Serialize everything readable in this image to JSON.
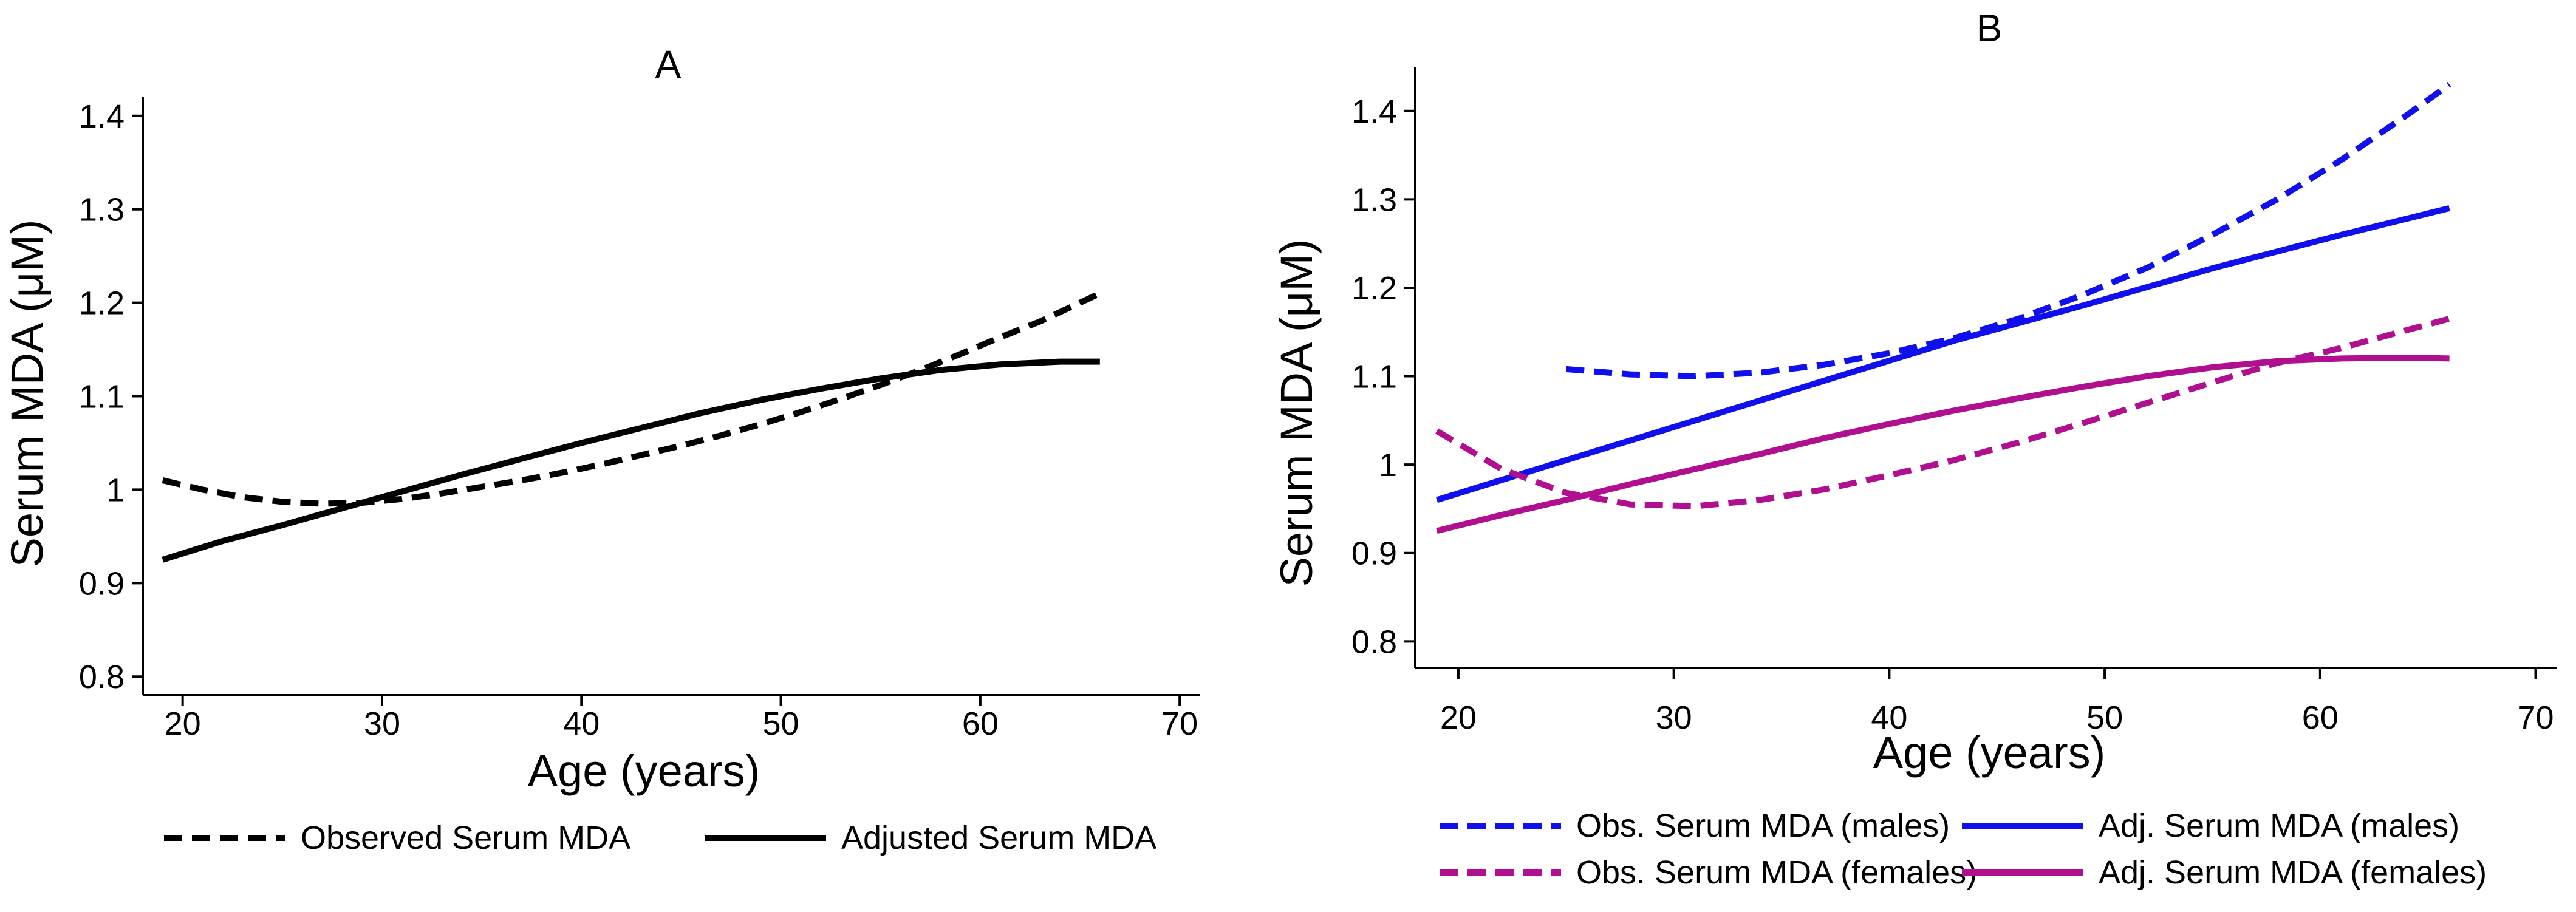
{
  "chart_data": [
    {
      "type": "line",
      "title": "A",
      "xlabel": "Age (years)",
      "ylabel": "Serum MDA (μM)",
      "xlim": [
        18,
        71
      ],
      "ylim": [
        0.78,
        1.42
      ],
      "x_ticks": [
        "20",
        "30",
        "40",
        "50",
        "60",
        "70"
      ],
      "y_ticks": [
        "0.8",
        "0.9",
        "1",
        "1.1",
        "1.2",
        "1.3",
        "1.4"
      ],
      "grid": false,
      "legend_position": "bottom",
      "series": [
        {
          "name": "Observed Serum MDA",
          "color": "#000000",
          "dash": "dashed",
          "x": [
            19,
            21,
            23,
            25,
            27,
            29,
            31,
            33,
            35,
            37,
            39,
            41,
            43,
            45,
            47,
            49,
            51,
            53,
            55,
            57,
            59,
            61,
            63,
            66
          ],
          "y": [
            1.01,
            1.0,
            0.992,
            0.987,
            0.985,
            0.986,
            0.99,
            0.996,
            1.003,
            1.01,
            1.018,
            1.027,
            1.037,
            1.047,
            1.058,
            1.07,
            1.083,
            1.097,
            1.112,
            1.128,
            1.145,
            1.163,
            1.18,
            1.21
          ]
        },
        {
          "name": "Adjusted Serum MDA",
          "color": "#000000",
          "dash": "solid",
          "x": [
            19,
            22,
            25,
            28,
            31,
            34,
            37,
            40,
            43,
            46,
            49,
            52,
            55,
            58,
            61,
            64,
            66
          ],
          "y": [
            0.925,
            0.945,
            0.962,
            0.98,
            0.998,
            1.016,
            1.033,
            1.05,
            1.066,
            1.082,
            1.096,
            1.108,
            1.119,
            1.128,
            1.134,
            1.137,
            1.137
          ]
        }
      ]
    },
    {
      "type": "line",
      "title": "B",
      "xlabel": "Age (years)",
      "ylabel": "Serum MDA (μM)",
      "xlim": [
        18,
        71
      ],
      "ylim": [
        0.77,
        1.45
      ],
      "x_ticks": [
        "20",
        "30",
        "40",
        "50",
        "60",
        "70"
      ],
      "y_ticks": [
        "0.8",
        "0.9",
        "1",
        "1.1",
        "1.2",
        "1.3",
        "1.4"
      ],
      "grid": false,
      "legend_position": "bottom",
      "series": [
        {
          "name": "Obs. Serum MDA (males)",
          "color": "#1010ee",
          "dash": "dashed",
          "x": [
            25,
            28,
            31,
            34,
            37,
            40,
            43,
            46,
            49,
            52,
            55,
            58,
            61,
            64,
            66
          ],
          "y": [
            1.108,
            1.102,
            1.1,
            1.104,
            1.113,
            1.126,
            1.143,
            1.165,
            1.192,
            1.223,
            1.26,
            1.3,
            1.345,
            1.395,
            1.43
          ]
        },
        {
          "name": "Adj. Serum MDA (males)",
          "color": "#1010ee",
          "dash": "solid",
          "x": [
            19,
            25,
            31,
            37,
            43,
            49,
            55,
            61,
            66
          ],
          "y": [
            0.96,
            1.005,
            1.05,
            1.095,
            1.14,
            1.18,
            1.222,
            1.26,
            1.29
          ]
        },
        {
          "name": "Obs. Serum MDA (females)",
          "color": "#b01090",
          "dash": "dashed",
          "x": [
            19,
            22,
            25,
            28,
            31,
            34,
            37,
            40,
            43,
            46,
            49,
            52,
            55,
            58,
            61,
            64,
            66
          ],
          "y": [
            1.038,
            0.995,
            0.968,
            0.955,
            0.953,
            0.96,
            0.972,
            0.988,
            1.005,
            1.025,
            1.047,
            1.07,
            1.093,
            1.115,
            1.132,
            1.152,
            1.165
          ]
        },
        {
          "name": "Adj. Serum MDA (females)",
          "color": "#b01090",
          "dash": "solid",
          "x": [
            19,
            22,
            25,
            28,
            31,
            34,
            37,
            40,
            43,
            46,
            49,
            52,
            55,
            58,
            61,
            64,
            66
          ],
          "y": [
            0.925,
            0.943,
            0.96,
            0.978,
            0.995,
            1.012,
            1.03,
            1.046,
            1.061,
            1.075,
            1.088,
            1.1,
            1.11,
            1.117,
            1.12,
            1.121,
            1.12
          ]
        }
      ]
    }
  ]
}
